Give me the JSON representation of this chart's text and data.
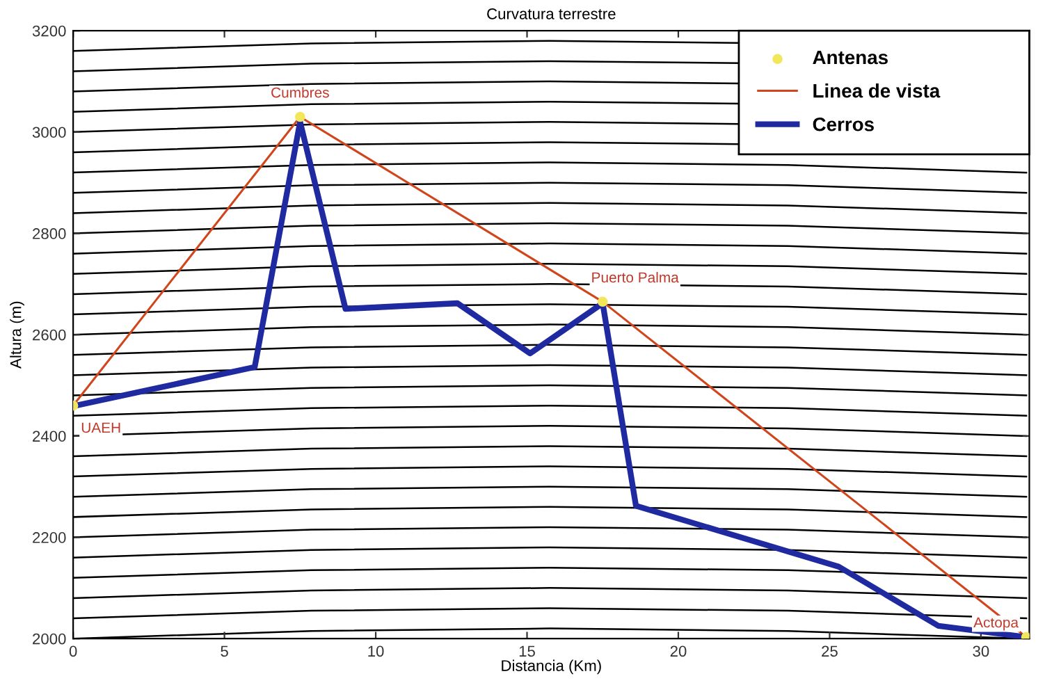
{
  "chart_data": {
    "type": "line",
    "title": "Curvatura terrestre",
    "xlabel": "Distancia (Km)",
    "ylabel": "Altura (m)",
    "xlim": [
      0,
      31.6
    ],
    "xticks": [
      0,
      5,
      10,
      15,
      20,
      25,
      30
    ],
    "ylim": [
      2000,
      3200
    ],
    "yticks": [
      2000,
      2200,
      2400,
      2600,
      2800,
      3000,
      3200
    ],
    "grid": false,
    "legend": "top right",
    "annotations": [
      {
        "text": "UAEH",
        "x": 0,
        "y": 2460
      },
      {
        "text": "Cumbres",
        "x": 7.5,
        "y": 3030
      },
      {
        "text": "Puerto Palma",
        "x": 17.5,
        "y": 2665
      },
      {
        "text": "Actopa",
        "x": 31.5,
        "y": 2003
      }
    ],
    "series": [
      {
        "color": "#000000",
        "x": [
          0,
          7.875,
          15.75,
          23.625,
          31.5
        ],
        "values": [
          2000,
          2015,
          2020,
          2015,
          2000
        ]
      },
      {
        "color": "#000000",
        "x": [
          0,
          7.875,
          15.75,
          23.625,
          31.5
        ],
        "values": [
          2040,
          2055,
          2060,
          2055,
          2040
        ]
      },
      {
        "color": "#000000",
        "x": [
          0,
          7.875,
          15.75,
          23.625,
          31.5
        ],
        "values": [
          2080,
          2095,
          2100,
          2095,
          2080
        ]
      },
      {
        "color": "#000000",
        "x": [
          0,
          7.875,
          15.75,
          23.625,
          31.5
        ],
        "values": [
          2120,
          2135,
          2140,
          2135,
          2120
        ]
      },
      {
        "color": "#000000",
        "x": [
          0,
          7.875,
          15.75,
          23.625,
          31.5
        ],
        "values": [
          2160,
          2175,
          2180,
          2175,
          2160
        ]
      },
      {
        "color": "#000000",
        "x": [
          0,
          7.875,
          15.75,
          23.625,
          31.5
        ],
        "values": [
          2200,
          2215,
          2220,
          2215,
          2200
        ]
      },
      {
        "color": "#000000",
        "x": [
          0,
          7.875,
          15.75,
          23.625,
          31.5
        ],
        "values": [
          2240,
          2255,
          2260,
          2255,
          2240
        ]
      },
      {
        "color": "#000000",
        "x": [
          0,
          7.875,
          15.75,
          23.625,
          31.5
        ],
        "values": [
          2280,
          2295,
          2300,
          2295,
          2280
        ]
      },
      {
        "color": "#000000",
        "x": [
          0,
          7.875,
          15.75,
          23.625,
          31.5
        ],
        "values": [
          2320,
          2335,
          2340,
          2335,
          2320
        ]
      },
      {
        "color": "#000000",
        "x": [
          0,
          7.875,
          15.75,
          23.625,
          31.5
        ],
        "values": [
          2360,
          2375,
          2380,
          2375,
          2360
        ]
      },
      {
        "color": "#000000",
        "x": [
          0,
          7.875,
          15.75,
          23.625,
          31.5
        ],
        "values": [
          2400,
          2415,
          2420,
          2415,
          2400
        ]
      },
      {
        "color": "#000000",
        "x": [
          0,
          7.875,
          15.75,
          23.625,
          31.5
        ],
        "values": [
          2440,
          2455,
          2460,
          2455,
          2440
        ]
      },
      {
        "color": "#000000",
        "x": [
          0,
          7.875,
          15.75,
          23.625,
          31.5
        ],
        "values": [
          2480,
          2495,
          2500,
          2495,
          2480
        ]
      },
      {
        "color": "#000000",
        "x": [
          0,
          7.875,
          15.75,
          23.625,
          31.5
        ],
        "values": [
          2520,
          2535,
          2540,
          2535,
          2520
        ]
      },
      {
        "color": "#000000",
        "x": [
          0,
          7.875,
          15.75,
          23.625,
          31.5
        ],
        "values": [
          2560,
          2575,
          2580,
          2575,
          2560
        ]
      },
      {
        "color": "#000000",
        "x": [
          0,
          7.875,
          15.75,
          23.625,
          31.5
        ],
        "values": [
          2600,
          2615,
          2620,
          2615,
          2600
        ]
      },
      {
        "color": "#000000",
        "x": [
          0,
          7.875,
          15.75,
          23.625,
          31.5
        ],
        "values": [
          2640,
          2655,
          2660,
          2655,
          2640
        ]
      },
      {
        "color": "#000000",
        "x": [
          0,
          7.875,
          15.75,
          23.625,
          31.5
        ],
        "values": [
          2680,
          2695,
          2700,
          2695,
          2680
        ]
      },
      {
        "color": "#000000",
        "x": [
          0,
          7.875,
          15.75,
          23.625,
          31.5
        ],
        "values": [
          2720,
          2735,
          2740,
          2735,
          2720
        ]
      },
      {
        "color": "#000000",
        "x": [
          0,
          7.875,
          15.75,
          23.625,
          31.5
        ],
        "values": [
          2760,
          2775,
          2780,
          2775,
          2760
        ]
      },
      {
        "color": "#000000",
        "x": [
          0,
          7.875,
          15.75,
          23.625,
          31.5
        ],
        "values": [
          2800,
          2815,
          2820,
          2815,
          2800
        ]
      },
      {
        "color": "#000000",
        "x": [
          0,
          7.875,
          15.75,
          23.625,
          31.5
        ],
        "values": [
          2840,
          2855,
          2860,
          2855,
          2840
        ]
      },
      {
        "color": "#000000",
        "x": [
          0,
          7.875,
          15.75,
          23.625,
          31.5
        ],
        "values": [
          2880,
          2895,
          2900,
          2895,
          2880
        ]
      },
      {
        "color": "#000000",
        "x": [
          0,
          7.875,
          15.75,
          23.625,
          31.5
        ],
        "values": [
          2920,
          2935,
          2940,
          2935,
          2920
        ]
      },
      {
        "color": "#000000",
        "x": [
          0,
          7.875,
          15.75,
          22
        ],
        "values": [
          2960,
          2975,
          2980,
          2976
        ]
      },
      {
        "color": "#000000",
        "x": [
          0,
          7.875,
          15.75,
          22
        ],
        "values": [
          3000,
          3015,
          3020,
          3016
        ]
      },
      {
        "color": "#000000",
        "x": [
          0,
          7.875,
          15.75,
          22
        ],
        "values": [
          3040,
          3055,
          3060,
          3056
        ]
      },
      {
        "color": "#000000",
        "x": [
          0,
          7.875,
          15.75,
          22
        ],
        "values": [
          3080,
          3095,
          3100,
          3096
        ]
      },
      {
        "color": "#000000",
        "x": [
          0,
          7.875,
          15.75,
          22
        ],
        "values": [
          3120,
          3135,
          3140,
          3136
        ]
      },
      {
        "color": "#000000",
        "x": [
          0,
          7.875,
          15.75,
          22
        ],
        "values": [
          3160,
          3175,
          3180,
          3176
        ]
      },
      {
        "type": "scatter",
        "name": "Antenas",
        "color": "#f2e65a",
        "marker": "circle",
        "x": [
          0,
          7.5,
          17.5,
          31.5
        ],
        "values": [
          2460,
          3030,
          2665,
          2003
        ]
      },
      {
        "name": "Linea de vista",
        "color": "#d0451b",
        "x": [
          0,
          7.5,
          17.5,
          31.5
        ],
        "values": [
          2460,
          3030,
          2665,
          2003
        ]
      },
      {
        "name": "Cerros",
        "color": "#1f2aa0",
        "x": [
          0,
          6.0,
          7.5,
          9.0,
          12.7,
          15.1,
          17.5,
          18.6,
          25.3,
          28.6,
          31.5
        ],
        "values": [
          2459,
          2536,
          3020,
          2651,
          2662,
          2563,
          2662,
          2262,
          2142,
          2025,
          2003
        ]
      }
    ]
  }
}
